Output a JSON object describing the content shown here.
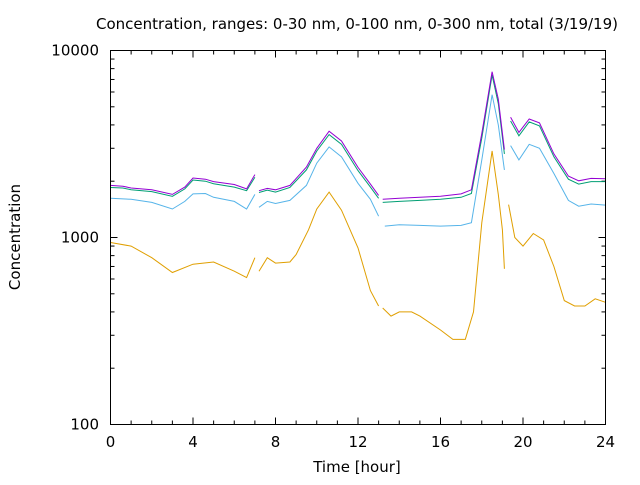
{
  "chart_data": {
    "type": "line",
    "title": "Concentration, ranges: 0-30 nm, 0-100 nm, 0-300 nm, total (3/19/19)",
    "xlabel": "Time [hour]",
    "ylabel": "Concentration",
    "xlim": [
      0,
      24
    ],
    "ylim": [
      100,
      10000
    ],
    "yscale": "log",
    "xticks": [
      0,
      4,
      8,
      12,
      16,
      20,
      24
    ],
    "xtick_labels": [
      "0",
      "4",
      "8",
      "12",
      "16",
      "20",
      "24"
    ],
    "yticks": [
      100,
      1000,
      10000
    ],
    "ytick_labels": [
      "100",
      "1000",
      "10000"
    ],
    "grid": false,
    "legend": "none",
    "series": [
      {
        "color": "#e09f00",
        "segments": [
          [
            [
              0,
              940
            ],
            [
              1,
              900
            ],
            [
              2,
              780
            ],
            [
              3,
              650
            ],
            [
              4,
              720
            ],
            [
              5,
              740
            ],
            [
              6,
              660
            ],
            [
              6.6,
              610
            ],
            [
              7,
              780
            ]
          ],
          [
            [
              7.2,
              660
            ],
            [
              7.6,
              780
            ],
            [
              8,
              730
            ],
            [
              8.7,
              740
            ],
            [
              9,
              810
            ],
            [
              9.6,
              1100
            ],
            [
              10,
              1420
            ],
            [
              10.6,
              1750
            ],
            [
              11.2,
              1400
            ],
            [
              12,
              880
            ],
            [
              12.6,
              520
            ],
            [
              13,
              430
            ]
          ],
          [
            [
              13.2,
              420
            ],
            [
              13.6,
              380
            ],
            [
              14,
              400
            ],
            [
              14.6,
              400
            ],
            [
              15,
              380
            ],
            [
              16,
              320
            ],
            [
              16.6,
              285
            ],
            [
              17.2,
              285
            ],
            [
              17.6,
              400
            ],
            [
              18,
              1200
            ],
            [
              18.5,
              2900
            ],
            [
              18.8,
              1700
            ],
            [
              19,
              1100
            ],
            [
              19.1,
              680
            ]
          ],
          [
            [
              19.3,
              1500
            ],
            [
              19.6,
              1000
            ],
            [
              20,
              900
            ],
            [
              20.5,
              1050
            ],
            [
              21,
              970
            ],
            [
              21.5,
              700
            ],
            [
              22,
              460
            ],
            [
              22.5,
              430
            ],
            [
              23,
              430
            ],
            [
              23.5,
              470
            ],
            [
              24,
              450
            ]
          ]
        ]
      },
      {
        "color": "#56b4e9",
        "segments": [
          [
            [
              0,
              1620
            ],
            [
              1,
              1600
            ],
            [
              2,
              1540
            ],
            [
              3,
              1420
            ],
            [
              3.6,
              1560
            ],
            [
              4,
              1710
            ],
            [
              4.6,
              1720
            ],
            [
              5,
              1640
            ],
            [
              6,
              1560
            ],
            [
              6.6,
              1420
            ],
            [
              7,
              1700
            ]
          ],
          [
            [
              7.2,
              1450
            ],
            [
              7.6,
              1560
            ],
            [
              8,
              1520
            ],
            [
              8.7,
              1580
            ],
            [
              9.5,
              1900
            ],
            [
              10,
              2500
            ],
            [
              10.6,
              3050
            ],
            [
              11.2,
              2700
            ],
            [
              12,
              1950
            ],
            [
              12.6,
              1600
            ],
            [
              13,
              1300
            ]
          ],
          [
            [
              13.3,
              1150
            ],
            [
              14,
              1170
            ],
            [
              15,
              1160
            ],
            [
              16,
              1150
            ],
            [
              17,
              1160
            ],
            [
              17.5,
              1200
            ],
            [
              18,
              2600
            ],
            [
              18.5,
              5800
            ],
            [
              18.8,
              4000
            ],
            [
              19.1,
              2300
            ]
          ],
          [
            [
              19.4,
              3100
            ],
            [
              19.8,
              2600
            ],
            [
              20.3,
              3150
            ],
            [
              20.8,
              3000
            ],
            [
              21.5,
              2200
            ],
            [
              22.2,
              1580
            ],
            [
              22.7,
              1470
            ],
            [
              23.3,
              1510
            ],
            [
              24,
              1490
            ]
          ]
        ]
      },
      {
        "color": "#009e73",
        "segments": [
          [
            [
              0,
              1850
            ],
            [
              0.6,
              1840
            ],
            [
              1,
              1800
            ],
            [
              2,
              1760
            ],
            [
              3,
              1660
            ],
            [
              3.6,
              1820
            ],
            [
              4,
              2030
            ],
            [
              4.6,
              2000
            ],
            [
              5,
              1940
            ],
            [
              6,
              1860
            ],
            [
              6.6,
              1780
            ],
            [
              7,
              2100
            ]
          ],
          [
            [
              7.2,
              1740
            ],
            [
              7.6,
              1790
            ],
            [
              8,
              1750
            ],
            [
              8.7,
              1850
            ],
            [
              9.5,
              2300
            ],
            [
              10,
              2900
            ],
            [
              10.6,
              3550
            ],
            [
              11.2,
              3150
            ],
            [
              12,
              2280
            ],
            [
              12.6,
              1860
            ],
            [
              13,
              1620
            ]
          ],
          [
            [
              13.2,
              1540
            ],
            [
              14,
              1560
            ],
            [
              15,
              1580
            ],
            [
              16,
              1600
            ],
            [
              17,
              1640
            ],
            [
              17.5,
              1720
            ],
            [
              18,
              3400
            ],
            [
              18.5,
              7400
            ],
            [
              18.8,
              5200
            ],
            [
              19.1,
              2800
            ]
          ],
          [
            [
              19.4,
              4200
            ],
            [
              19.8,
              3500
            ],
            [
              20.3,
              4150
            ],
            [
              20.8,
              3950
            ],
            [
              21.5,
              2700
            ],
            [
              22.2,
              2050
            ],
            [
              22.7,
              1930
            ],
            [
              23.3,
              1990
            ],
            [
              24,
              1990
            ]
          ]
        ]
      },
      {
        "color": "#9400d3",
        "segments": [
          [
            [
              0,
              1900
            ],
            [
              0.6,
              1880
            ],
            [
              1,
              1840
            ],
            [
              2,
              1800
            ],
            [
              3,
              1700
            ],
            [
              3.6,
              1860
            ],
            [
              4,
              2080
            ],
            [
              4.6,
              2050
            ],
            [
              5,
              1990
            ],
            [
              6,
              1920
            ],
            [
              6.6,
              1820
            ],
            [
              7,
              2170
            ]
          ],
          [
            [
              7.2,
              1780
            ],
            [
              7.6,
              1830
            ],
            [
              8,
              1800
            ],
            [
              8.7,
              1900
            ],
            [
              9.5,
              2380
            ],
            [
              10,
              3000
            ],
            [
              10.6,
              3700
            ],
            [
              11.2,
              3280
            ],
            [
              12,
              2370
            ],
            [
              12.6,
              1930
            ],
            [
              13,
              1680
            ]
          ],
          [
            [
              13.2,
              1600
            ],
            [
              14,
              1620
            ],
            [
              15,
              1640
            ],
            [
              16,
              1660
            ],
            [
              17,
              1710
            ],
            [
              17.5,
              1800
            ],
            [
              18,
              3600
            ],
            [
              18.5,
              7700
            ],
            [
              18.8,
              5500
            ],
            [
              19.1,
              2950
            ]
          ],
          [
            [
              19.4,
              4400
            ],
            [
              19.8,
              3650
            ],
            [
              20.3,
              4300
            ],
            [
              20.8,
              4100
            ],
            [
              21.5,
              2800
            ],
            [
              22.2,
              2130
            ],
            [
              22.7,
              2010
            ],
            [
              23.3,
              2070
            ],
            [
              24,
              2060
            ]
          ]
        ]
      }
    ]
  }
}
